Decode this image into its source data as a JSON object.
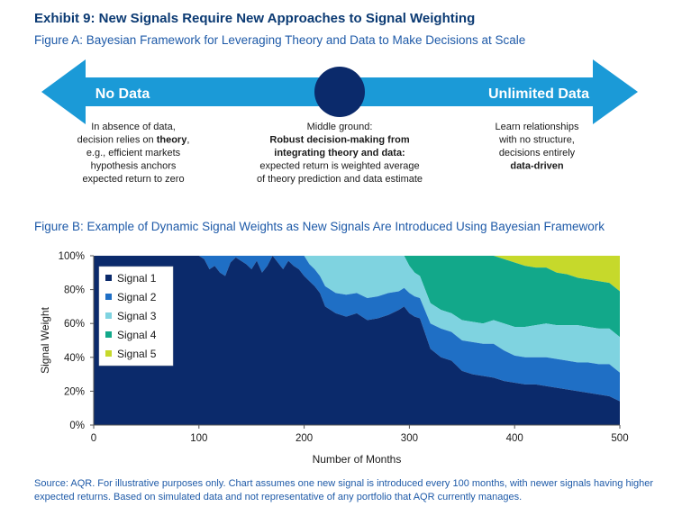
{
  "title": "Exhibit 9: New Signals Require New Approaches to Signal Weighting",
  "figure_a": {
    "subtitle": "Figure A: Bayesian Framework for Leveraging Theory and Data to Make Decisions at Scale",
    "left_label": "No Data",
    "right_label": "Unlimited Data",
    "left_text": [
      "In absence of data,",
      "decision relies on |theory|,",
      "e.g., efficient markets",
      "hypothesis anchors",
      "expected return to zero"
    ],
    "middle_text": [
      "Middle ground:",
      "|Robust decision-making from|",
      "|integrating theory and data:|",
      "expected return is weighted average",
      "of theory prediction and data estimate"
    ],
    "right_text": [
      "Learn relationships",
      "with no structure,",
      "decisions entirely",
      "|data-driven|"
    ]
  },
  "figure_b_subtitle": "Figure B: Example of Dynamic Signal Weights as New Signals Are Introduced Using Bayesian Framework",
  "colors": {
    "arrow": "#1b9ad7",
    "circle": "#0b2a6b",
    "signal_1": "#0b2a6b",
    "signal_2": "#1f6fc5",
    "signal_3": "#7fd3e0",
    "signal_4": "#12a88a",
    "signal_5": "#c6d92b"
  },
  "chart_data": {
    "type": "area",
    "stacked": true,
    "xlabel": "Number of Months",
    "ylabel": "Signal Weight",
    "xlim": [
      0,
      500
    ],
    "ylim": [
      0,
      100
    ],
    "x_ticks": [
      0,
      100,
      200,
      300,
      400,
      500
    ],
    "y_ticks": [
      "0%",
      "20%",
      "40%",
      "60%",
      "80%",
      "100%"
    ],
    "legend_position": "top-left",
    "x": [
      0,
      100,
      105,
      110,
      115,
      120,
      125,
      130,
      135,
      140,
      145,
      150,
      155,
      160,
      165,
      170,
      175,
      180,
      185,
      190,
      195,
      200,
      205,
      210,
      215,
      220,
      230,
      240,
      250,
      260,
      270,
      280,
      290,
      295,
      300,
      305,
      310,
      320,
      330,
      340,
      350,
      360,
      370,
      380,
      390,
      400,
      410,
      420,
      430,
      440,
      450,
      460,
      470,
      480,
      490,
      500
    ],
    "series": [
      {
        "name": "Signal 1",
        "values": [
          100,
          100,
          98,
          92,
          94,
          90,
          88,
          96,
          99,
          97,
          95,
          92,
          97,
          90,
          94,
          100,
          96,
          92,
          97,
          94,
          92,
          88,
          85,
          82,
          78,
          70,
          66,
          64,
          66,
          62,
          63,
          65,
          68,
          70,
          66,
          64,
          63,
          45,
          40,
          38,
          32,
          30,
          29,
          28,
          26,
          25,
          24,
          24,
          23,
          22,
          21,
          20,
          19,
          18,
          17,
          14
        ]
      },
      {
        "name": "Signal 2",
        "values": [
          0,
          0,
          2,
          8,
          6,
          10,
          12,
          4,
          1,
          3,
          5,
          8,
          3,
          10,
          6,
          0,
          4,
          8,
          3,
          6,
          8,
          12,
          10,
          10,
          10,
          12,
          12,
          13,
          12,
          13,
          13,
          13,
          11,
          11,
          12,
          12,
          12,
          15,
          17,
          17,
          18,
          19,
          19,
          20,
          18,
          16,
          16,
          16,
          17,
          17,
          17,
          17,
          18,
          18,
          19,
          17
        ]
      },
      {
        "name": "Signal 3",
        "values": [
          0,
          0,
          0,
          0,
          0,
          0,
          0,
          0,
          0,
          0,
          0,
          0,
          0,
          0,
          0,
          0,
          0,
          0,
          0,
          0,
          0,
          0,
          5,
          8,
          12,
          18,
          22,
          23,
          22,
          25,
          24,
          22,
          21,
          19,
          16,
          14,
          13,
          12,
          11,
          11,
          12,
          12,
          12,
          14,
          16,
          17,
          18,
          19,
          20,
          20,
          21,
          22,
          21,
          21,
          21,
          21
        ]
      },
      {
        "name": "Signal 4",
        "values": [
          0,
          0,
          0,
          0,
          0,
          0,
          0,
          0,
          0,
          0,
          0,
          0,
          0,
          0,
          0,
          0,
          0,
          0,
          0,
          0,
          0,
          0,
          0,
          0,
          0,
          0,
          0,
          0,
          0,
          0,
          0,
          0,
          0,
          0,
          6,
          10,
          12,
          28,
          32,
          34,
          38,
          39,
          40,
          38,
          38,
          38,
          36,
          34,
          33,
          31,
          30,
          28,
          28,
          28,
          27,
          27
        ]
      },
      {
        "name": "Signal 5",
        "values": [
          0,
          0,
          0,
          0,
          0,
          0,
          0,
          0,
          0,
          0,
          0,
          0,
          0,
          0,
          0,
          0,
          0,
          0,
          0,
          0,
          0,
          0,
          0,
          0,
          0,
          0,
          0,
          0,
          0,
          0,
          0,
          0,
          0,
          0,
          0,
          0,
          0,
          0,
          0,
          0,
          0,
          0,
          0,
          0,
          2,
          4,
          6,
          7,
          7,
          10,
          11,
          13,
          14,
          15,
          16,
          21
        ]
      }
    ]
  },
  "source": "Source: AQR. For illustrative purposes only. Chart assumes one new signal is introduced every 100 months, with newer signals having higher expected returns. Based on simulated data and not representative of any portfolio that AQR currently manages."
}
